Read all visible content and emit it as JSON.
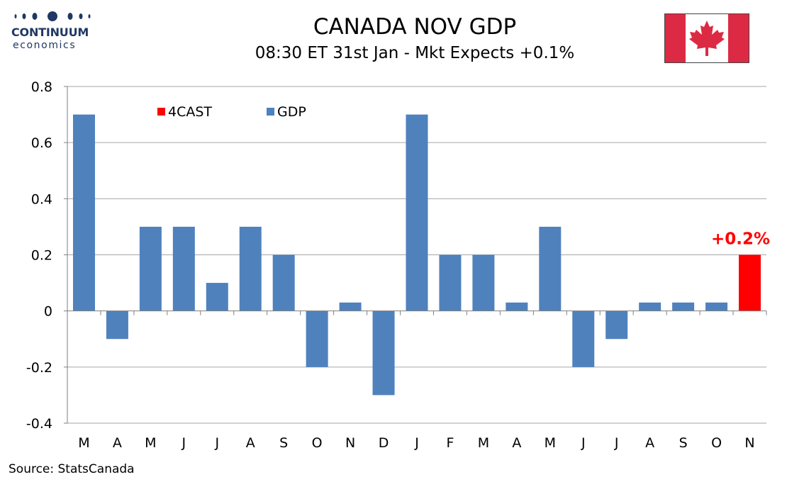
{
  "header": {
    "logo_name": "CONTINUUM",
    "logo_sub": "economics",
    "title": "CANADA NOV GDP",
    "subtitle": "08:30 ET 31st Jan - Mkt Expects +0.1%"
  },
  "flag_icon": "canada-flag-icon",
  "source": "Source: StatsCanada",
  "colors": {
    "gdp": "#4f81bd",
    "forecast": "#ff0000",
    "flag_red": "#dd2a44",
    "logo": "#1f3864"
  },
  "chart_data": {
    "type": "bar",
    "categories": [
      "M",
      "A",
      "M",
      "J",
      "J",
      "A",
      "S",
      "O",
      "N",
      "D",
      "J",
      "F",
      "M",
      "A",
      "M",
      "J",
      "J",
      "A",
      "S",
      "O",
      "N"
    ],
    "series": [
      {
        "name": "GDP",
        "color": "#4f81bd",
        "values": [
          0.7,
          -0.1,
          0.3,
          0.3,
          0.1,
          0.3,
          0.2,
          -0.2,
          0.03,
          -0.3,
          0.7,
          0.2,
          0.2,
          0.03,
          0.3,
          -0.2,
          -0.1,
          0.03,
          0.03,
          0.03,
          null
        ]
      },
      {
        "name": "4CAST",
        "color": "#ff0000",
        "values": [
          null,
          null,
          null,
          null,
          null,
          null,
          null,
          null,
          null,
          null,
          null,
          null,
          null,
          null,
          null,
          null,
          null,
          null,
          null,
          null,
          0.2
        ]
      }
    ],
    "ylim": [
      -0.4,
      0.8
    ],
    "yticks": [
      0.8,
      0.6,
      0.4,
      0.2,
      0,
      -0.2,
      -0.4
    ],
    "ytick_labels": [
      "0.8",
      "0.6",
      "0.4",
      "0.2",
      "0",
      "-0.2",
      "-0.4"
    ],
    "grid": true,
    "legend": "top-left",
    "annotation": "+0.2%"
  }
}
